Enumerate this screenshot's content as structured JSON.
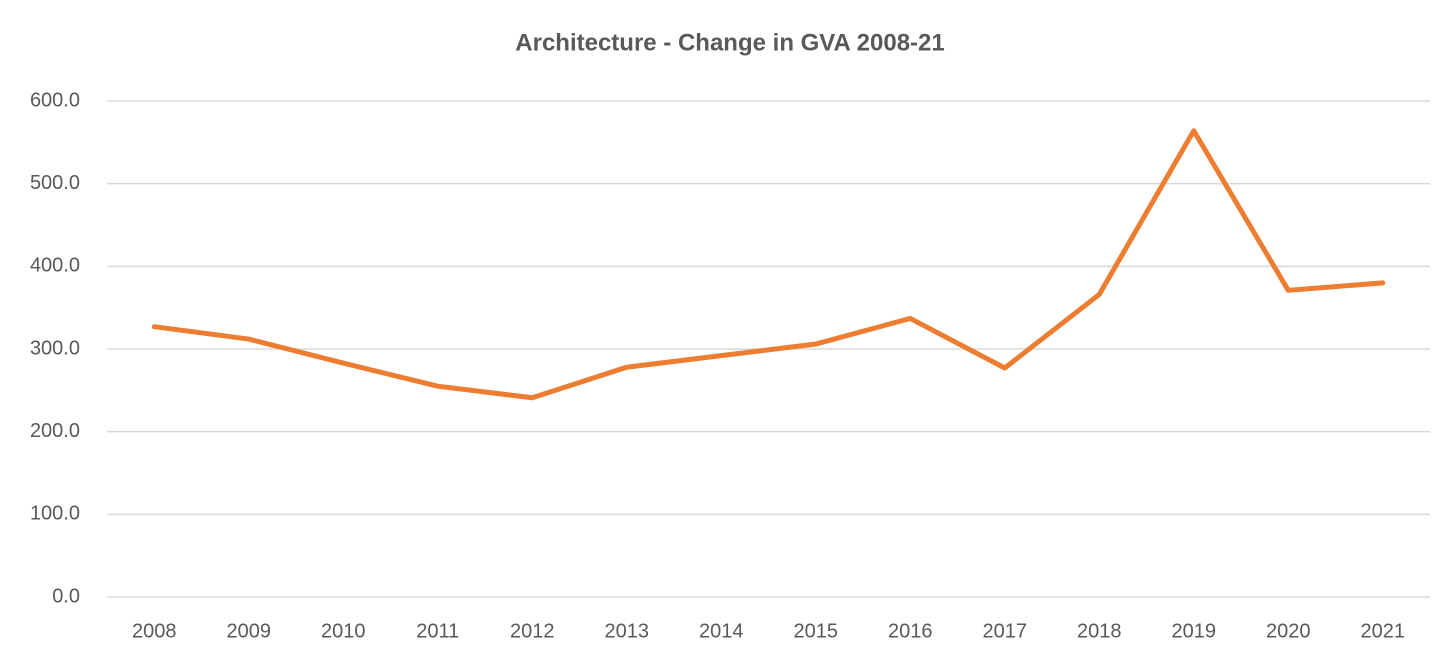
{
  "chart_data": {
    "type": "line",
    "title": "Architecture - Change in GVA 2008-21",
    "categories": [
      "2008",
      "2009",
      "2010",
      "2011",
      "2012",
      "2013",
      "2014",
      "2015",
      "2016",
      "2017",
      "2018",
      "2019",
      "2020",
      "2021"
    ],
    "series": [
      {
        "color": "#ed7d31",
        "values": [
          327,
          312,
          283,
          255,
          241,
          278,
          292,
          306,
          337,
          277,
          366,
          564,
          371,
          380
        ]
      }
    ],
    "ylim": [
      0,
      600
    ],
    "yticks": [
      {
        "value": 0,
        "label": "0.0"
      },
      {
        "value": 100,
        "label": "100.0"
      },
      {
        "value": 200,
        "label": "200.0"
      },
      {
        "value": 300,
        "label": "300.0"
      },
      {
        "value": 400,
        "label": "400.0"
      },
      {
        "value": 500,
        "label": "500.0"
      },
      {
        "value": 600,
        "label": "600.0"
      }
    ],
    "grid": true
  }
}
